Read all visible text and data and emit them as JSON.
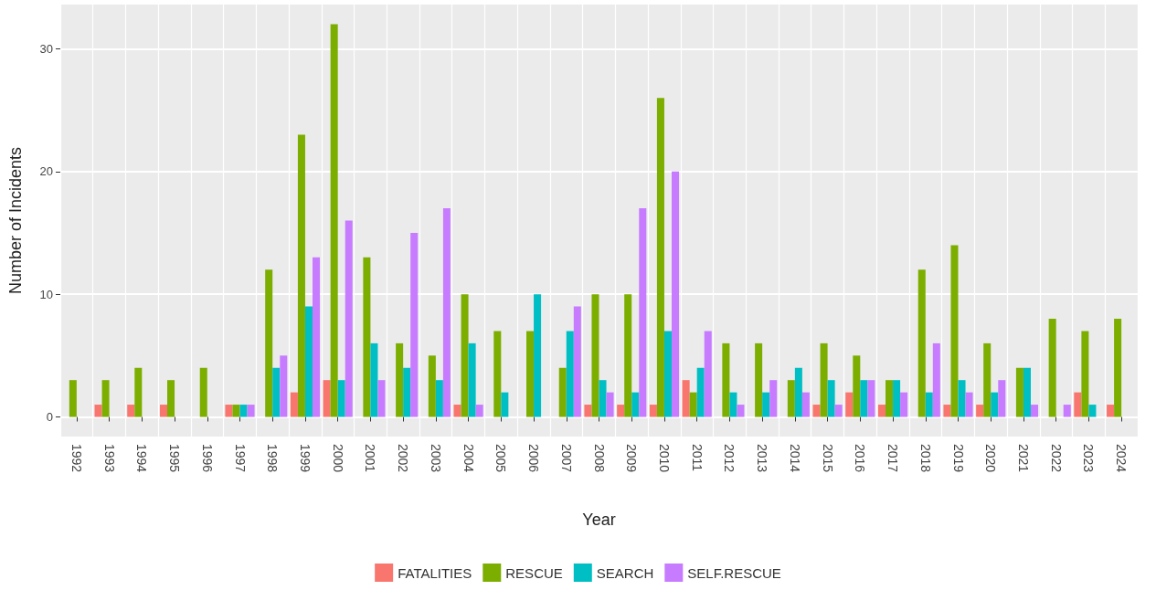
{
  "chart_data": {
    "type": "bar",
    "xlabel": "Year",
    "ylabel": "Number of Incidents",
    "categories": [
      "1992",
      "1993",
      "1994",
      "1995",
      "1996",
      "1997",
      "1998",
      "1999",
      "2000",
      "2001",
      "2002",
      "2003",
      "2004",
      "2005",
      "2006",
      "2007",
      "2008",
      "2009",
      "2010",
      "2011",
      "2012",
      "2013",
      "2014",
      "2015",
      "2016",
      "2017",
      "2018",
      "2019",
      "2020",
      "2021",
      "2022",
      "2023",
      "2024"
    ],
    "series": [
      {
        "name": "FATALITIES",
        "color": "#f8766d",
        "values": [
          null,
          1,
          1,
          1,
          null,
          1,
          null,
          2,
          3,
          null,
          null,
          null,
          1,
          null,
          null,
          null,
          1,
          1,
          1,
          3,
          null,
          null,
          null,
          1,
          2,
          1,
          null,
          1,
          1,
          null,
          null,
          2,
          1
        ]
      },
      {
        "name": "RESCUE",
        "color": "#7cae00",
        "values": [
          3,
          3,
          4,
          3,
          4,
          1,
          12,
          23,
          32,
          13,
          6,
          5,
          10,
          7,
          7,
          4,
          10,
          10,
          26,
          2,
          6,
          6,
          3,
          6,
          5,
          3,
          12,
          14,
          6,
          4,
          8,
          7,
          8
        ]
      },
      {
        "name": "SEARCH",
        "color": "#00bfc4",
        "values": [
          null,
          null,
          null,
          null,
          null,
          1,
          4,
          9,
          3,
          6,
          4,
          3,
          6,
          2,
          10,
          7,
          3,
          2,
          7,
          4,
          2,
          2,
          4,
          3,
          3,
          3,
          2,
          3,
          2,
          4,
          null,
          1,
          null
        ]
      },
      {
        "name": "SELF.RESCUE",
        "color": "#c77cff",
        "values": [
          null,
          null,
          null,
          null,
          null,
          1,
          5,
          13,
          16,
          3,
          15,
          17,
          1,
          null,
          null,
          9,
          2,
          17,
          20,
          7,
          1,
          3,
          2,
          1,
          3,
          2,
          6,
          2,
          3,
          1,
          1,
          null,
          null
        ]
      }
    ],
    "ylim": [
      -1.6,
      33.6
    ],
    "yticks": [
      0,
      10,
      20,
      30
    ],
    "grid": true,
    "legend": "bottom"
  }
}
